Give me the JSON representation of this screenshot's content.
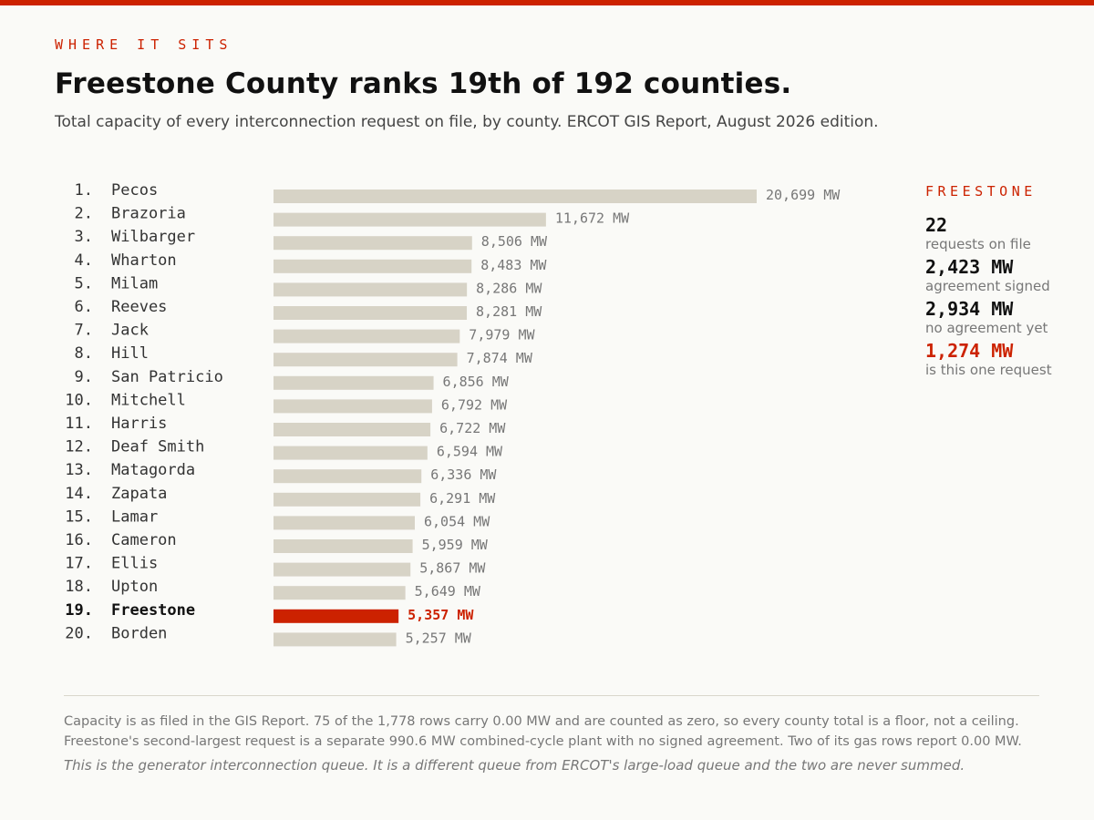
{
  "kicker": "WHERE IT SITS",
  "title": "Freestone County ranks 19th of 192 counties.",
  "subtitle": "Total capacity of every interconnection request on file, by county. ERCOT GIS Report, August 2026 edition.",
  "colors": {
    "accent": "#cc2200",
    "bar": "#d7d3c6",
    "text": "#333333",
    "muted": "#777777"
  },
  "chart_data": {
    "type": "bar",
    "orientation": "horizontal",
    "unit": "MW",
    "highlight": "Freestone",
    "categories": [
      "Pecos",
      "Brazoria",
      "Wilbarger",
      "Wharton",
      "Milam",
      "Reeves",
      "Jack",
      "Hill",
      "San Patricio",
      "Mitchell",
      "Harris",
      "Deaf Smith",
      "Matagorda",
      "Zapata",
      "Lamar",
      "Cameron",
      "Ellis",
      "Upton",
      "Freestone",
      "Borden"
    ],
    "ranks": [
      "1.",
      "2.",
      "3.",
      "4.",
      "5.",
      "6.",
      "7.",
      "8.",
      "9.",
      "10.",
      "11.",
      "12.",
      "13.",
      "14.",
      "15.",
      "16.",
      "17.",
      "18.",
      "19.",
      "20."
    ],
    "values": [
      20699,
      11672,
      8506,
      8483,
      8286,
      8281,
      7979,
      7874,
      6856,
      6792,
      6722,
      6594,
      6336,
      6291,
      6054,
      5959,
      5867,
      5649,
      5357,
      5257
    ],
    "value_labels": [
      "20,699 MW",
      "11,672 MW",
      "8,506 MW",
      "8,483 MW",
      "8,286 MW",
      "8,281 MW",
      "7,979 MW",
      "7,874 MW",
      "6,856 MW",
      "6,792 MW",
      "6,722 MW",
      "6,594 MW",
      "6,336 MW",
      "6,291 MW",
      "6,054 MW",
      "5,959 MW",
      "5,867 MW",
      "5,649 MW",
      "5,357 MW",
      "5,257 MW"
    ]
  },
  "sidebar": {
    "heading": "FREESTONE",
    "stats": [
      {
        "value": "22",
        "label": "requests on file"
      },
      {
        "value": "2,423 MW",
        "label": "agreement signed"
      },
      {
        "value": "2,934 MW",
        "label": "no agreement yet"
      },
      {
        "value": "1,274 MW",
        "label": "is this one request",
        "accent": true
      }
    ]
  },
  "notes": {
    "line1": "Capacity is as filed in the GIS Report. 75 of the 1,778 rows carry 0.00 MW and are counted as zero, so every county total is a floor, not a ceiling.",
    "line2": "Freestone's second-largest request is a separate 990.6 MW combined-cycle plant with no signed agreement. Two of its gas rows report 0.00 MW.",
    "line3": "This is the generator interconnection queue. It is a different queue from ERCOT's large-load queue and the two are never summed."
  }
}
